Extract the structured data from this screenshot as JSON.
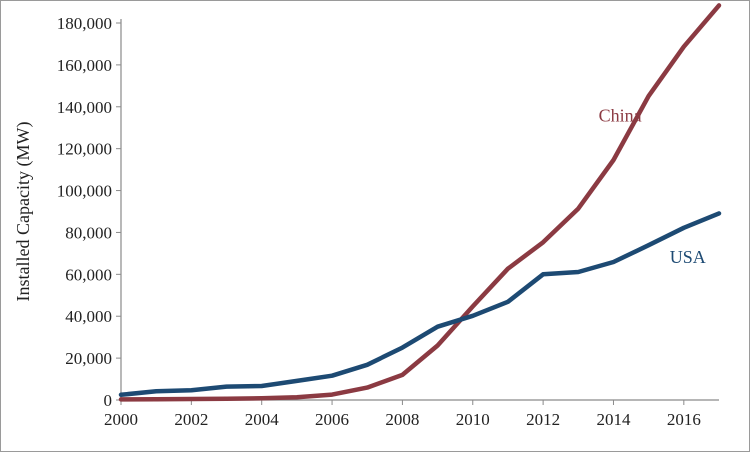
{
  "chart_data": {
    "type": "line",
    "title": "",
    "xlabel": "",
    "ylabel": "Installed Capacity (MW)",
    "x": [
      2000,
      2001,
      2002,
      2003,
      2004,
      2005,
      2006,
      2007,
      2008,
      2009,
      2010,
      2011,
      2012,
      2013,
      2014,
      2015,
      2016,
      2017
    ],
    "x_tick_labels": [
      "2000",
      "2002",
      "2004",
      "2006",
      "2008",
      "2010",
      "2012",
      "2014",
      "2016"
    ],
    "y_tick_labels": [
      "0",
      "20,000",
      "40,000",
      "60,000",
      "80,000",
      "100,000",
      "120,000",
      "140,000",
      "160,000",
      "180,000"
    ],
    "xlim": [
      2000,
      2017
    ],
    "ylim": [
      0,
      180000
    ],
    "grid": false,
    "legend": "none",
    "series": [
      {
        "name": "China",
        "color": "#8b3a42",
        "values": [
          300,
          400,
          500,
          600,
          800,
          1300,
          2600,
          5900,
          12000,
          26000,
          44700,
          62700,
          75300,
          91400,
          114600,
          145100,
          168700,
          188400
        ]
      },
      {
        "name": "USA",
        "color": "#1d4a73",
        "values": [
          2500,
          4200,
          4700,
          6400,
          6700,
          9100,
          11600,
          16800,
          25000,
          35000,
          40200,
          46900,
          60000,
          61100,
          65900,
          73900,
          82200,
          89100
        ]
      }
    ]
  }
}
